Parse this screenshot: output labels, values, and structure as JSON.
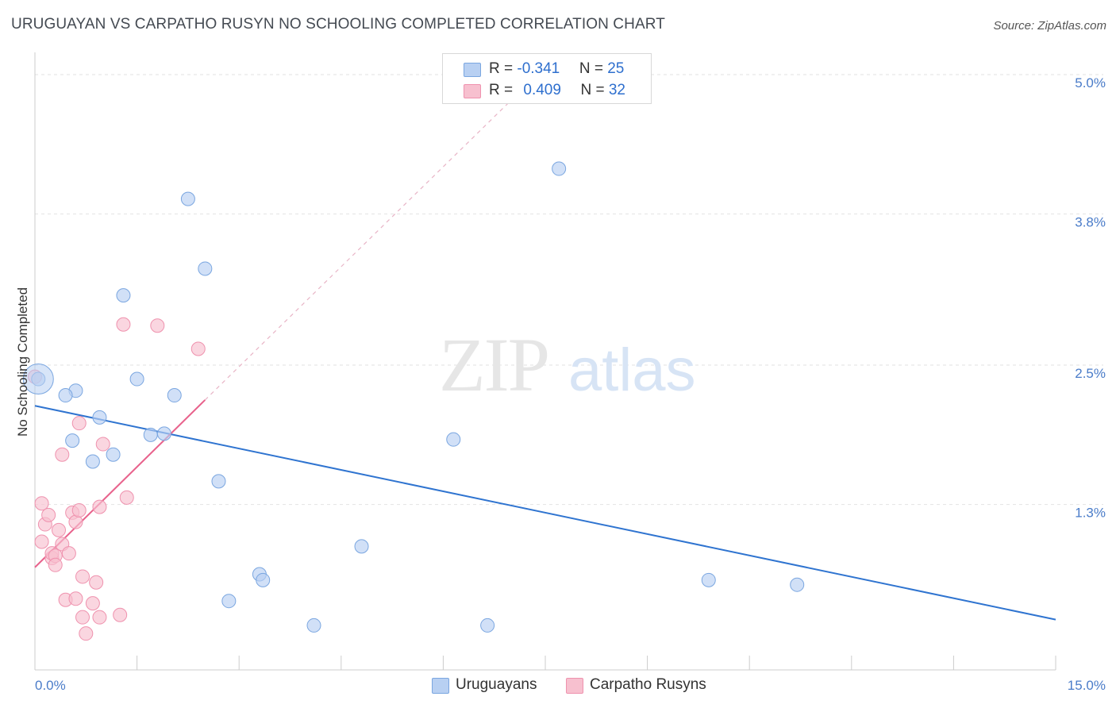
{
  "header": {
    "title": "URUGUAYAN VS CARPATHO RUSYN NO SCHOOLING COMPLETED CORRELATION CHART",
    "source": "Source: ZipAtlas.com"
  },
  "watermark": {
    "part1": "ZIP",
    "part2": "atlas"
  },
  "legend_top": {
    "rows": [
      {
        "r_label": "R = ",
        "r_value": "-0.341",
        "n_label": "N = ",
        "n_value": "25"
      },
      {
        "r_label": "R = ",
        "r_value": "0.409",
        "n_label": "N = ",
        "n_value": "32"
      }
    ]
  },
  "legend_bottom": {
    "items": [
      "Uruguayans",
      "Carpatho Rusyns"
    ]
  },
  "colors": {
    "blue_fill": "#b8d0f2",
    "blue_stroke": "#7aa6e0",
    "blue_line": "#2f74d0",
    "pink_fill": "#f7c0cf",
    "pink_stroke": "#ef92ae",
    "pink_line": "#e8628c",
    "grid": "#e2e2e2",
    "tick_label": "#4a7cc9"
  },
  "chart_data": {
    "type": "scatter",
    "title": "URUGUAYAN VS CARPATHO RUSYN NO SCHOOLING COMPLETED CORRELATION CHART",
    "xlabel": "",
    "ylabel": "No Schooling Completed",
    "xlim": [
      0,
      15
    ],
    "ylim": [
      0,
      5.15
    ],
    "x_tick_labels": [
      {
        "value": 0,
        "label": "0.0%"
      },
      {
        "value": 15,
        "label": "15.0%"
      }
    ],
    "y_tick_labels": [
      {
        "value": 1.3,
        "label": "1.3%"
      },
      {
        "value": 2.5,
        "label": "2.5%"
      },
      {
        "value": 3.8,
        "label": "3.8%"
      },
      {
        "value": 5.0,
        "label": "5.0%"
      }
    ],
    "grid": true,
    "legend_position": "top-center",
    "series": [
      {
        "name": "Uruguayans",
        "points": [
          [
            0.05,
            2.38
          ],
          [
            0.6,
            2.28
          ],
          [
            0.45,
            2.24
          ],
          [
            0.55,
            1.85
          ],
          [
            0.95,
            2.05
          ],
          [
            1.3,
            3.1
          ],
          [
            1.5,
            2.38
          ],
          [
            1.7,
            1.9
          ],
          [
            1.9,
            1.91
          ],
          [
            2.05,
            2.24
          ],
          [
            2.25,
            3.93
          ],
          [
            2.5,
            3.33
          ],
          [
            0.85,
            1.67
          ],
          [
            1.15,
            1.73
          ],
          [
            2.7,
            1.5
          ],
          [
            2.85,
            0.47
          ],
          [
            3.3,
            0.7
          ],
          [
            3.35,
            0.65
          ],
          [
            4.1,
            0.26
          ],
          [
            4.8,
            0.94
          ],
          [
            6.15,
            1.86
          ],
          [
            6.65,
            0.26
          ],
          [
            7.7,
            4.19
          ],
          [
            9.9,
            0.65
          ],
          [
            11.2,
            0.61
          ]
        ],
        "trend": {
          "x": [
            0,
            15
          ],
          "y": [
            2.15,
            0.31
          ]
        }
      },
      {
        "name": "Carpatho Rusyns",
        "points": [
          [
            0.0,
            2.4
          ],
          [
            0.1,
            1.31
          ],
          [
            0.1,
            0.98
          ],
          [
            0.15,
            1.13
          ],
          [
            0.2,
            1.21
          ],
          [
            0.25,
            0.84
          ],
          [
            0.25,
            0.88
          ],
          [
            0.3,
            0.86
          ],
          [
            0.3,
            0.78
          ],
          [
            0.35,
            1.08
          ],
          [
            0.4,
            0.96
          ],
          [
            0.4,
            1.73
          ],
          [
            0.45,
            0.48
          ],
          [
            0.5,
            0.88
          ],
          [
            0.55,
            1.23
          ],
          [
            0.6,
            0.49
          ],
          [
            0.6,
            1.15
          ],
          [
            0.65,
            1.25
          ],
          [
            0.65,
            2.0
          ],
          [
            0.7,
            0.33
          ],
          [
            0.7,
            0.68
          ],
          [
            0.75,
            0.19
          ],
          [
            0.85,
            0.45
          ],
          [
            0.9,
            0.63
          ],
          [
            0.95,
            1.28
          ],
          [
            0.95,
            0.33
          ],
          [
            1.0,
            1.82
          ],
          [
            1.25,
            0.35
          ],
          [
            1.3,
            2.85
          ],
          [
            1.35,
            1.36
          ],
          [
            1.8,
            2.84
          ],
          [
            2.4,
            2.64
          ]
        ],
        "trend": {
          "x": [
            0,
            2.5
          ],
          "y": [
            0.76,
            2.2
          ]
        },
        "trend_dashed_extension": {
          "x": [
            2.5,
            7.0
          ],
          "y": [
            2.2,
            4.78
          ]
        }
      }
    ]
  }
}
